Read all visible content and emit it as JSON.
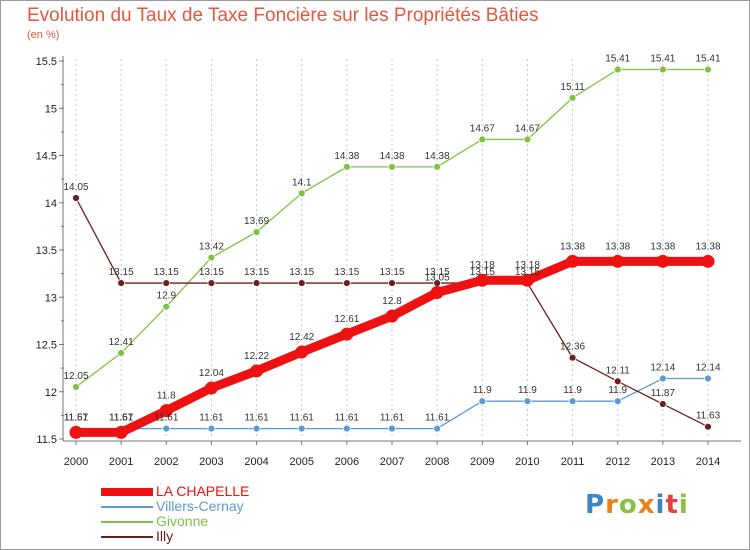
{
  "chart_data": {
    "type": "line",
    "title": "Evolution du Taux de Taxe Foncière sur les Propriétés Bâties",
    "ylabel": "(en %)",
    "xlabel": "",
    "ylim": [
      11.5,
      15.5
    ],
    "yticks": [
      "11.5",
      "12",
      "12.5",
      "13",
      "13.5",
      "14",
      "14.5",
      "15",
      "15.5"
    ],
    "categories": [
      "2000",
      "2001",
      "2002",
      "2003",
      "2004",
      "2005",
      "2006",
      "2007",
      "2008",
      "2009",
      "2010",
      "2011",
      "2012",
      "2013",
      "2014"
    ],
    "series": [
      {
        "name": "Villers-Cernay",
        "color": "#5b9bd5",
        "values": [
          11.61,
          11.61,
          11.61,
          11.61,
          11.61,
          11.61,
          11.61,
          11.61,
          11.61,
          11.9,
          11.9,
          11.9,
          11.9,
          12.14,
          12.14
        ],
        "labels": [
          "11.61",
          "11.61",
          "11.61",
          "11.61",
          "11.61",
          "11.61",
          "11.61",
          "11.61",
          "11.61",
          "11.9",
          "11.9",
          "11.9",
          "11.9",
          "12.14",
          "12.14"
        ]
      },
      {
        "name": "Givonne",
        "color": "#7dc242",
        "values": [
          12.05,
          12.41,
          12.9,
          13.42,
          13.69,
          14.1,
          14.38,
          14.38,
          14.38,
          14.67,
          14.67,
          15.11,
          15.41,
          15.41,
          15.41
        ],
        "labels": [
          "12.05",
          "12.41",
          "12.9",
          "13.42",
          "13.69",
          "14.1",
          "14.38",
          "14.38",
          "14.38",
          "14.67",
          "14.67",
          "15.11",
          "15.41",
          "15.41",
          "15.41"
        ]
      },
      {
        "name": "Illy",
        "color": "#6d1f1f",
        "values": [
          14.05,
          13.15,
          13.15,
          13.15,
          13.15,
          13.15,
          13.15,
          13.15,
          13.15,
          13.15,
          13.15,
          12.36,
          12.11,
          11.87,
          11.63
        ],
        "labels": [
          "14.05",
          "13.15",
          "13.15",
          "13.15",
          "13.15",
          "13.15",
          "13.15",
          "13.15",
          "13.15",
          "13.15",
          "13.15",
          "12.36",
          "12.11",
          "11.87",
          "11.63"
        ]
      },
      {
        "name": "LA CHAPELLE",
        "color": "#ee1111",
        "values": [
          11.57,
          11.57,
          11.8,
          12.04,
          12.22,
          12.42,
          12.61,
          12.8,
          13.05,
          13.18,
          13.18,
          13.38,
          13.38,
          13.38,
          13.38
        ],
        "labels": [
          "11.57",
          "11.57",
          "11.8",
          "12.04",
          "12.22",
          "12.42",
          "12.61",
          "12.8",
          "13.05",
          "13.18",
          "13.18",
          "13.38",
          "13.38",
          "13.38",
          "13.38"
        ]
      }
    ]
  },
  "legend": {
    "items": [
      {
        "name": "LA CHAPELLE",
        "color": "#ee1111"
      },
      {
        "name": "Villers-Cernay",
        "color": "#5b9bd5"
      },
      {
        "name": "Givonne",
        "color": "#7dc242"
      },
      {
        "name": "Illy",
        "color": "#6d1f1f"
      }
    ]
  },
  "brand": {
    "letters": [
      "P",
      "r",
      "o",
      "x",
      "i",
      "t",
      "i"
    ],
    "colors": [
      "#3d86c6",
      "#e8811a",
      "#8bbf3f",
      "#e8811a",
      "#3d86c6",
      "#e83e3e",
      "#8bbf3f"
    ]
  }
}
